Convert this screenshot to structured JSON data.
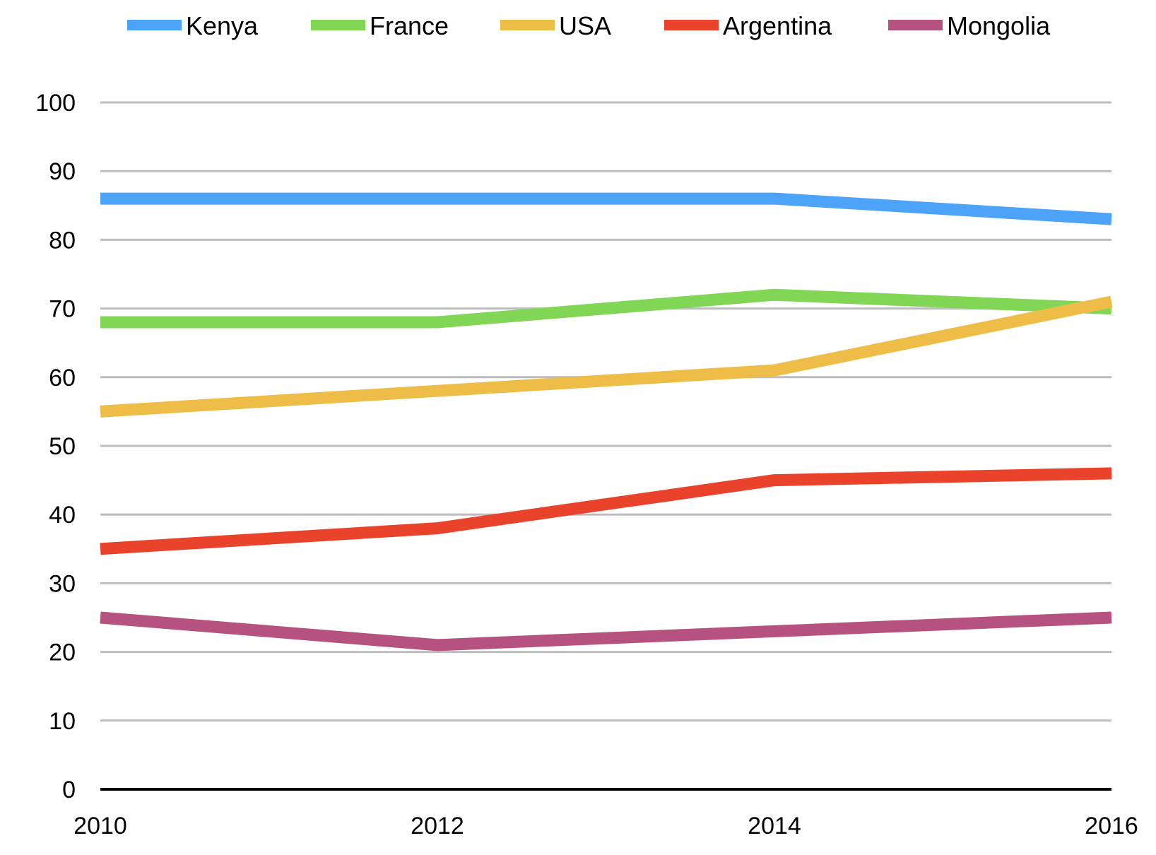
{
  "chart_data": {
    "type": "line",
    "x": [
      2010,
      2012,
      2014,
      2016
    ],
    "series": [
      {
        "name": "Kenya",
        "color": "#4da3f7",
        "values": [
          86,
          86,
          86,
          83
        ]
      },
      {
        "name": "France",
        "color": "#82d656",
        "values": [
          68,
          68,
          72,
          70
        ]
      },
      {
        "name": "USA",
        "color": "#eebd47",
        "values": [
          55,
          58,
          61,
          71
        ]
      },
      {
        "name": "Argentina",
        "color": "#e9432b",
        "values": [
          35,
          38,
          45,
          46
        ]
      },
      {
        "name": "Mongolia",
        "color": "#b5527f",
        "values": [
          25,
          21,
          23,
          25
        ]
      }
    ],
    "x_ticks": [
      "2010",
      "2012",
      "2014",
      "2016"
    ],
    "y_ticks": [
      "0",
      "10",
      "20",
      "30",
      "40",
      "50",
      "60",
      "70",
      "80",
      "90",
      "100"
    ],
    "xlim": [
      2010,
      2016
    ],
    "ylim": [
      0,
      100
    ],
    "grid": true,
    "legend_position": "top"
  }
}
